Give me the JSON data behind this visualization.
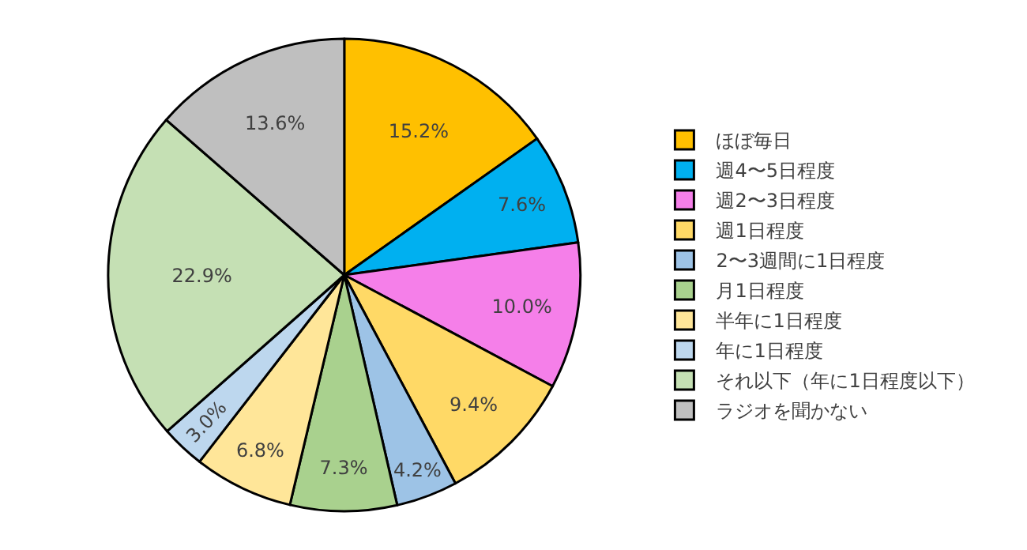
{
  "chart_data": {
    "type": "pie",
    "categories": [
      "ほぼ毎日",
      "週4〜5日程度",
      "週2〜3日程度",
      "週1日程度",
      "2〜3週間に1日程度",
      "月1日程度",
      "半年に1日程度",
      "年に1日程度",
      "それ以下（年に1日程度以下）",
      "ラジオを聞かない"
    ],
    "values": [
      15.2,
      7.6,
      10.0,
      9.4,
      4.2,
      7.3,
      6.8,
      3.0,
      22.9,
      13.6
    ],
    "value_labels": [
      "15.2%",
      "7.6%",
      "10.0%",
      "9.4%",
      "4.2%",
      "7.3%",
      "6.8%",
      "3.0%",
      "22.9%",
      "13.6%"
    ],
    "colors": [
      "#ffc000",
      "#00b0f0",
      "#f57fe9",
      "#ffd966",
      "#9dc3e6",
      "#a9d18e",
      "#ffe699",
      "#bdd7ee",
      "#c5e0b4",
      "#bfbfbf"
    ],
    "legend": "right"
  }
}
